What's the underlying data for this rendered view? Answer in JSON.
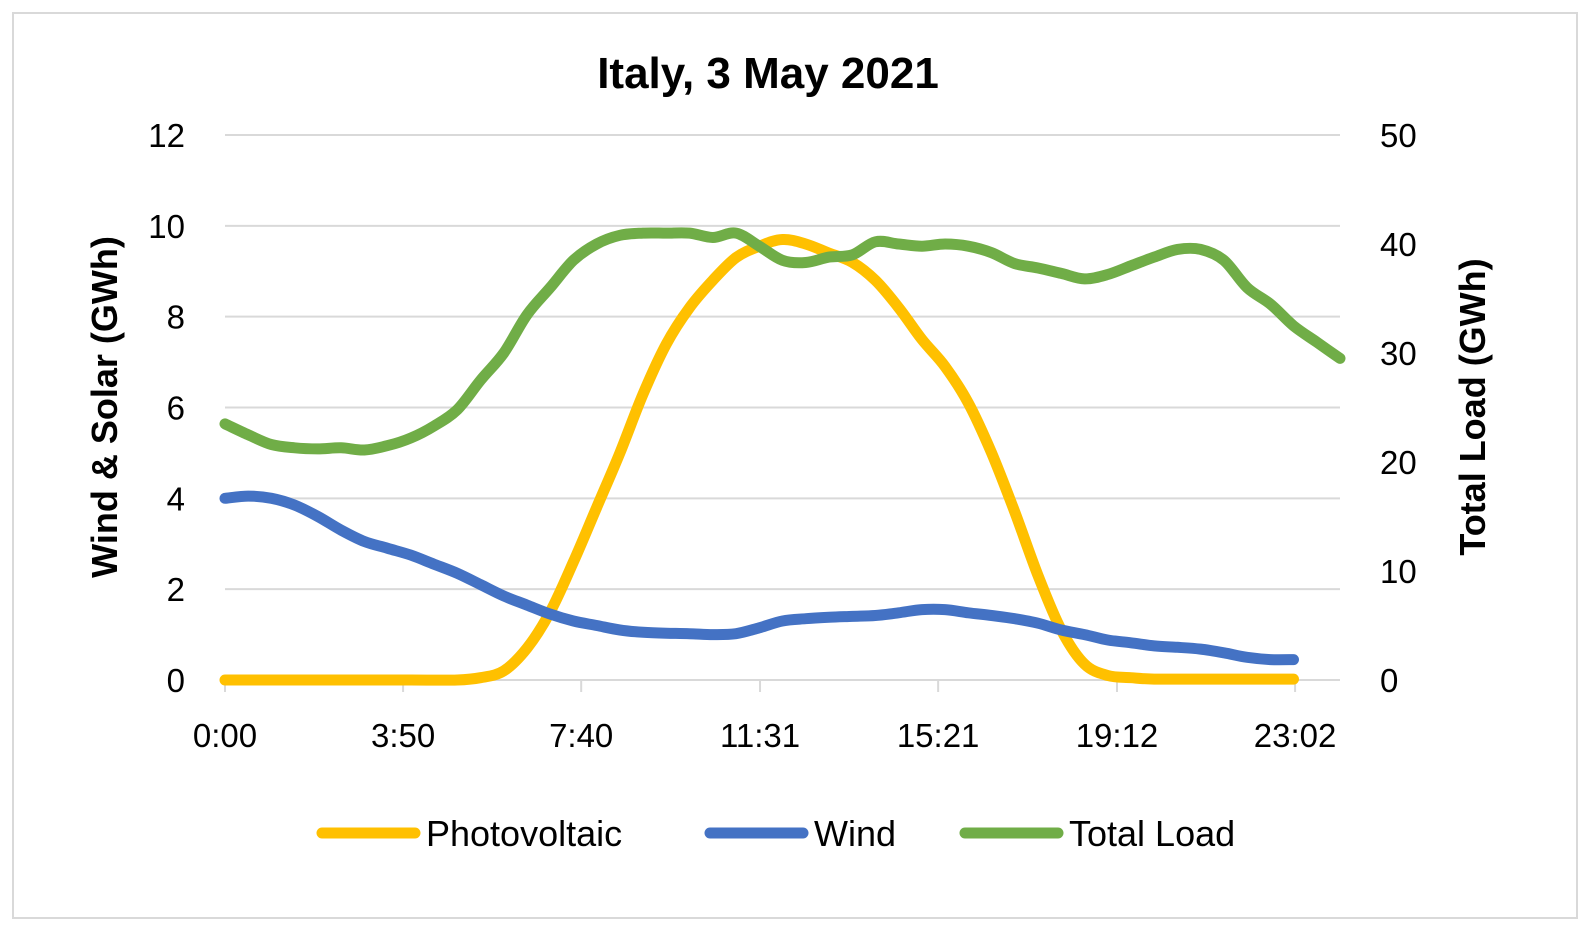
{
  "chart_data": {
    "type": "line",
    "title": "Italy, 3 May 2021",
    "ylabel_left": "Wind & Solar (GWh)",
    "ylabel_right": "Total Load (GWh)",
    "xlabel": "",
    "x_tick_labels": [
      "0:00",
      "3:50",
      "7:40",
      "11:31",
      "15:21",
      "19:12",
      "23:02"
    ],
    "x_tick_hours": [
      0,
      3.8333,
      7.6667,
      11.5167,
      15.35,
      19.2,
      23.0333
    ],
    "xlim_hours": [
      0,
      24
    ],
    "ylim_left": [
      0,
      12
    ],
    "ylim_right": [
      0,
      50
    ],
    "yticks_left": [
      "0",
      "2",
      "4",
      "6",
      "8",
      "10",
      "12"
    ],
    "yticks_right": [
      "0",
      "10",
      "20",
      "30",
      "40",
      "50"
    ],
    "grid": "horizontal",
    "legend_position": "bottom",
    "series": [
      {
        "name": "Photovoltaic",
        "axis": "left",
        "color": "#FFC000",
        "x": [
          0,
          1,
          2,
          3,
          4,
          5.0,
          5.5,
          6.0,
          6.5,
          7.0,
          7.5,
          8.0,
          8.5,
          9.0,
          9.5,
          10.0,
          10.5,
          11.0,
          11.5,
          12.0,
          12.5,
          13.0,
          13.5,
          14.0,
          14.5,
          15.0,
          15.5,
          16.0,
          16.5,
          17.0,
          17.5,
          18.0,
          18.5,
          19.0,
          19.5,
          20.0,
          21.0,
          22.0,
          23.0
        ],
        "values": [
          0,
          0,
          0,
          0,
          0,
          0,
          0.05,
          0.2,
          0.7,
          1.5,
          2.6,
          3.8,
          5.0,
          6.3,
          7.4,
          8.2,
          8.8,
          9.3,
          9.55,
          9.7,
          9.6,
          9.4,
          9.2,
          8.8,
          8.2,
          7.5,
          6.9,
          6.1,
          5.0,
          3.7,
          2.3,
          1.1,
          0.35,
          0.1,
          0.05,
          0.02,
          0.02,
          0.02,
          0.02
        ]
      },
      {
        "name": "Wind",
        "axis": "left",
        "color": "#4472C4",
        "x": [
          0,
          0.5,
          1,
          1.5,
          2,
          2.5,
          3,
          3.5,
          4,
          4.5,
          5,
          5.5,
          6,
          6.5,
          7,
          7.5,
          8,
          8.5,
          9,
          9.5,
          10,
          10.5,
          11,
          11.5,
          12,
          12.5,
          13,
          13.5,
          14,
          14.5,
          15,
          15.5,
          16,
          16.5,
          17,
          17.5,
          18,
          18.5,
          19,
          19.5,
          20,
          20.5,
          21,
          21.5,
          22,
          22.5,
          23
        ],
        "values": [
          4.0,
          4.05,
          4.0,
          3.85,
          3.6,
          3.3,
          3.05,
          2.9,
          2.75,
          2.55,
          2.35,
          2.1,
          1.85,
          1.65,
          1.45,
          1.3,
          1.2,
          1.1,
          1.05,
          1.03,
          1.02,
          1.0,
          1.02,
          1.15,
          1.3,
          1.35,
          1.38,
          1.4,
          1.42,
          1.48,
          1.55,
          1.55,
          1.48,
          1.42,
          1.35,
          1.25,
          1.1,
          1.0,
          0.88,
          0.82,
          0.75,
          0.72,
          0.68,
          0.6,
          0.5,
          0.45,
          0.45
        ]
      },
      {
        "name": "Total Load",
        "axis": "right",
        "color": "#70AD47",
        "x": [
          0,
          0.5,
          1,
          1.5,
          2,
          2.5,
          3,
          3.5,
          4,
          4.5,
          5,
          5.5,
          6,
          6.5,
          7,
          7.5,
          8,
          8.5,
          9,
          9.5,
          10,
          10.5,
          11,
          11.5,
          12,
          12.5,
          13,
          13.5,
          14,
          14.5,
          15,
          15.5,
          16,
          16.5,
          17,
          17.5,
          18,
          18.5,
          19,
          19.5,
          20,
          20.5,
          21,
          21.5,
          22,
          22.5,
          23,
          23.5,
          24
        ],
        "values": [
          23.5,
          22.5,
          21.6,
          21.3,
          21.2,
          21.3,
          21.1,
          21.5,
          22.2,
          23.3,
          24.8,
          27.5,
          30.0,
          33.5,
          36.0,
          38.5,
          40.0,
          40.8,
          41.0,
          41.0,
          41.0,
          40.6,
          41.0,
          39.8,
          38.5,
          38.3,
          38.8,
          39.0,
          40.2,
          40.0,
          39.8,
          40.0,
          39.8,
          39.2,
          38.2,
          37.8,
          37.3,
          36.8,
          37.2,
          38.0,
          38.8,
          39.5,
          39.5,
          38.5,
          36.0,
          34.5,
          32.5,
          31.0,
          29.5
        ]
      }
    ]
  }
}
